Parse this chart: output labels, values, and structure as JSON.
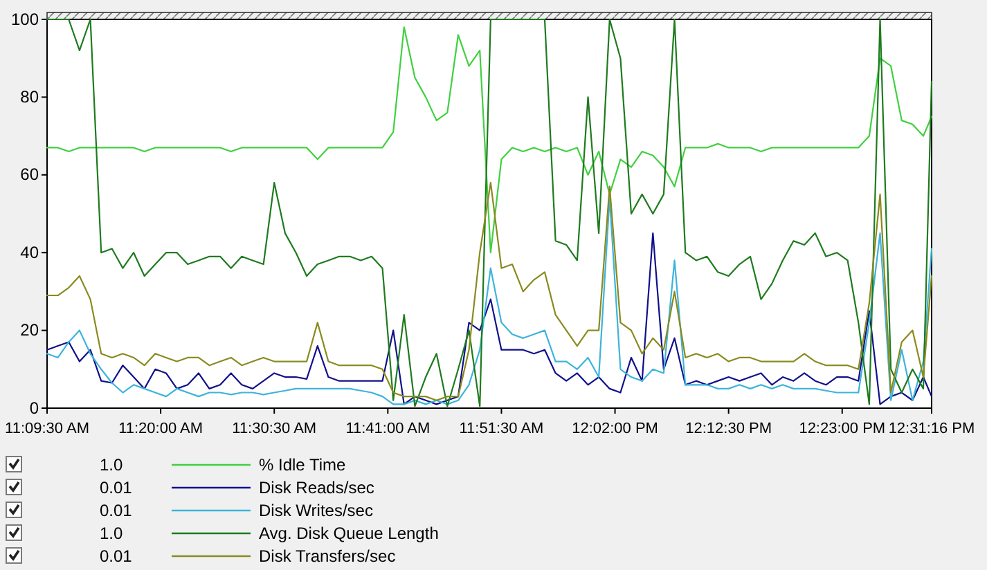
{
  "chart_data": {
    "type": "line",
    "xlim": [
      11.1583,
      12.5211
    ],
    "xticks": [
      {
        "value": 11.1583,
        "label": "11:09:30 AM"
      },
      {
        "value": 11.3333,
        "label": "11:20:00 AM"
      },
      {
        "value": 11.5083,
        "label": "11:30:30 AM"
      },
      {
        "value": 11.6833,
        "label": "11:41:00 AM"
      },
      {
        "value": 11.8583,
        "label": "11:51:30 AM"
      },
      {
        "value": 12.0333,
        "label": "12:02:00 PM"
      },
      {
        "value": 12.2083,
        "label": "12:12:30 PM"
      },
      {
        "value": 12.3833,
        "label": "12:23:00 PM"
      },
      {
        "value": 12.5211,
        "label": "12:31:16 PM"
      }
    ],
    "ylim": [
      0,
      100
    ],
    "yticks": [
      0,
      20,
      40,
      60,
      80,
      100
    ],
    "x": [
      11.1583,
      11.175,
      11.1917,
      11.2083,
      11.225,
      11.2417,
      11.2583,
      11.275,
      11.2917,
      11.3083,
      11.325,
      11.3417,
      11.3583,
      11.375,
      11.3917,
      11.4083,
      11.425,
      11.4417,
      11.4583,
      11.475,
      11.4917,
      11.5083,
      11.525,
      11.5417,
      11.5583,
      11.575,
      11.5917,
      11.6083,
      11.625,
      11.6417,
      11.6583,
      11.675,
      11.6917,
      11.7083,
      11.725,
      11.7417,
      11.7583,
      11.775,
      11.7917,
      11.8083,
      11.825,
      11.8417,
      11.8583,
      11.875,
      11.8917,
      11.9083,
      11.925,
      11.9417,
      11.9583,
      11.975,
      11.9917,
      12.0083,
      12.025,
      12.0417,
      12.0583,
      12.075,
      12.0917,
      12.1083,
      12.125,
      12.1417,
      12.1583,
      12.175,
      12.1917,
      12.2083,
      12.225,
      12.2417,
      12.2583,
      12.275,
      12.2917,
      12.3083,
      12.325,
      12.3417,
      12.3583,
      12.375,
      12.3917,
      12.4083,
      12.425,
      12.4417,
      12.4583,
      12.475,
      12.4917,
      12.5083,
      12.5211
    ],
    "series": [
      {
        "name": "% Idle Time",
        "color": "#40d040",
        "values": [
          67,
          67,
          66,
          67,
          67,
          67,
          67,
          67,
          67,
          66,
          67,
          67,
          67,
          67,
          67,
          67,
          67,
          66,
          67,
          67,
          67,
          67,
          67,
          67,
          67,
          64,
          67,
          67,
          67,
          67,
          67,
          67,
          71,
          98,
          85,
          80,
          74,
          76,
          96,
          88,
          92,
          40,
          64,
          67,
          66,
          67,
          66,
          67,
          66,
          67,
          60,
          66,
          55,
          64,
          62,
          66,
          65,
          62,
          57,
          67,
          67,
          67,
          68,
          67,
          67,
          67,
          66,
          67,
          67,
          67,
          67,
          67,
          67,
          67,
          67,
          67,
          70,
          90,
          88,
          74,
          73,
          70,
          75
        ]
      },
      {
        "name": "Disk Reads/sec",
        "color": "#10108c",
        "values": [
          15,
          16,
          17,
          12,
          15,
          7,
          6.5,
          11,
          8,
          5,
          10,
          9,
          5,
          6,
          9,
          5,
          6,
          9,
          6,
          5,
          7,
          9,
          8,
          8,
          7.5,
          16,
          8,
          7,
          7,
          7,
          7,
          7,
          20,
          1,
          3,
          2,
          1,
          2,
          3,
          22,
          20,
          28,
          15,
          15,
          15,
          14,
          15,
          9,
          7,
          9,
          6,
          8,
          5,
          4,
          13,
          7,
          45,
          10,
          18,
          6,
          7,
          6,
          7,
          8,
          7,
          8,
          9,
          6,
          8,
          7,
          9,
          7,
          6,
          8,
          8,
          7,
          25,
          1,
          3,
          4,
          2,
          8,
          3
        ]
      },
      {
        "name": "Disk Writes/sec",
        "color": "#3cb4dc",
        "values": [
          14,
          13,
          17,
          20,
          14,
          10,
          6.5,
          4,
          6,
          5,
          4,
          3,
          5,
          4,
          3,
          4,
          4,
          3.5,
          4,
          4,
          3.5,
          4,
          4.5,
          5,
          5,
          5,
          5,
          5,
          5,
          4.5,
          4,
          3,
          1,
          1,
          2,
          1,
          2,
          1,
          2,
          6,
          15,
          36,
          22,
          19,
          18,
          19,
          20,
          12,
          12,
          10,
          13,
          8,
          54,
          10,
          8,
          7,
          10,
          9,
          38,
          6,
          6,
          6,
          5,
          5,
          6,
          5,
          6,
          5,
          6,
          5,
          5,
          5,
          4.5,
          4,
          4,
          4,
          22,
          45,
          2,
          15,
          2,
          12,
          41
        ]
      },
      {
        "name": "Avg. Disk Queue Length",
        "color": "#1e7b1e",
        "values": [
          100,
          100,
          100,
          92,
          100,
          40,
          41,
          36,
          40,
          34,
          37,
          40,
          40,
          37,
          38,
          39,
          39,
          36,
          39,
          38,
          37,
          58,
          45,
          40,
          34,
          37,
          38,
          39,
          39,
          38,
          39,
          36,
          2,
          24,
          0.5,
          8,
          14,
          0.5,
          10,
          20,
          0.5,
          100,
          100,
          100,
          100,
          100,
          100,
          43,
          42,
          38,
          80,
          45,
          100,
          90,
          50,
          55,
          50,
          55,
          100,
          40,
          38,
          39,
          35,
          34,
          37,
          39,
          28,
          32,
          38,
          43,
          42,
          45,
          39,
          40,
          38,
          22,
          1,
          100,
          10,
          4,
          10,
          5,
          84
        ]
      },
      {
        "name": "Disk Transfers/sec",
        "color": "#8a8a1e",
        "values": [
          29,
          29,
          31,
          34,
          28,
          14,
          13,
          14,
          13,
          11,
          14,
          13,
          12,
          13,
          13,
          11,
          12,
          13,
          11,
          12,
          13,
          12,
          12,
          12,
          12,
          22,
          12,
          11,
          11,
          11,
          11,
          10,
          4,
          3,
          3,
          3,
          2,
          3,
          3,
          15,
          40,
          58,
          36,
          37,
          30,
          33,
          35,
          24,
          20,
          16,
          20,
          20,
          57,
          22,
          20,
          14,
          18,
          15,
          30,
          13,
          14,
          13,
          14,
          12,
          13,
          13,
          12,
          12,
          12,
          12,
          14,
          12,
          11,
          11,
          11,
          10,
          27,
          55,
          4,
          17,
          20,
          8,
          34
        ]
      }
    ],
    "legend": "bottom",
    "annotations": [
      "1.0",
      "0.01",
      "0.01",
      "1.0",
      "0.01"
    ]
  }
}
